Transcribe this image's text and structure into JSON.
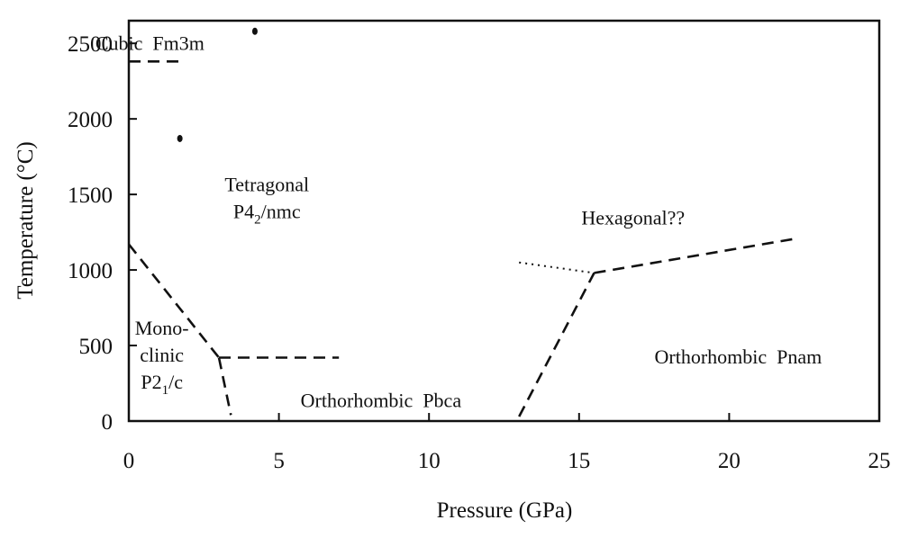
{
  "chart_data": {
    "type": "line",
    "title": "",
    "xlabel": "Pressure (GPa)",
    "ylabel": "Temperature (°C)",
    "xlim": [
      0,
      25
    ],
    "ylim": [
      0,
      2650
    ],
    "x_ticks": [
      0,
      5,
      10,
      15,
      20,
      25
    ],
    "y_ticks": [
      0,
      500,
      1000,
      1500,
      2000,
      2500
    ],
    "x_tick_labels": [
      "0",
      "5",
      "10",
      "15",
      "20",
      "25"
    ],
    "y_tick_labels": [
      "0",
      "500",
      "1000",
      "1500",
      "2000",
      "2500"
    ],
    "grid": false,
    "legend": "none",
    "colors": {
      "ink": "#111111",
      "background": "#ffffff"
    },
    "boundaries": [
      {
        "style": "dashed",
        "points": [
          [
            0,
            2380
          ],
          [
            1.8,
            2380
          ]
        ]
      },
      {
        "style": "dashed",
        "points": [
          [
            0,
            1170
          ],
          [
            3.0,
            420
          ]
        ]
      },
      {
        "style": "dashed",
        "points": [
          [
            3.0,
            420
          ],
          [
            7.0,
            420
          ]
        ]
      },
      {
        "style": "dashed",
        "points": [
          [
            3.0,
            420
          ],
          [
            3.4,
            40
          ]
        ]
      },
      {
        "style": "dashed",
        "points": [
          [
            13.0,
            30
          ],
          [
            15.5,
            980
          ]
        ]
      },
      {
        "style": "dashed",
        "points": [
          [
            15.5,
            980
          ],
          [
            22.3,
            1210
          ]
        ]
      },
      {
        "style": "dotted",
        "points": [
          [
            13.0,
            1050
          ],
          [
            15.5,
            980
          ]
        ]
      }
    ],
    "markers": [
      {
        "x": 1.7,
        "y": 1870
      },
      {
        "x": 4.2,
        "y": 2580
      }
    ],
    "regions": [
      {
        "lines": [
          {
            "text": "Cubic  Fm3m"
          }
        ],
        "x": 0.7,
        "y": 2505
      },
      {
        "lines": [
          {
            "text": "Tetragonal"
          },
          {
            "text": "P4",
            "sub": "2",
            "after": "/nmc"
          }
        ],
        "x": 4.6,
        "y": 1480
      },
      {
        "lines": [
          {
            "text": "Mono-"
          },
          {
            "text": "clinic"
          },
          {
            "text": "P2",
            "sub": "1",
            "after": "/c"
          }
        ],
        "x": 1.1,
        "y": 440
      },
      {
        "lines": [
          {
            "text": "Orthorhombic  Pbca"
          }
        ],
        "x": 8.4,
        "y": 140
      },
      {
        "lines": [
          {
            "text": "Hexagonal??"
          }
        ],
        "x": 16.8,
        "y": 1350
      },
      {
        "lines": [
          {
            "text": "Orthorhombic  Pnam"
          }
        ],
        "x": 20.3,
        "y": 430
      }
    ]
  }
}
